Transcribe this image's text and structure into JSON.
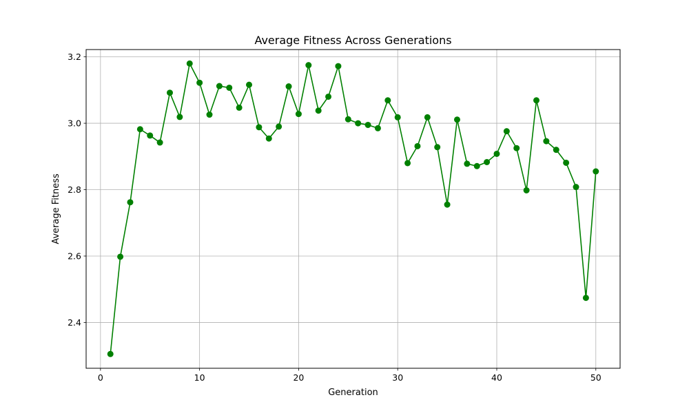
{
  "chart_data": {
    "type": "line",
    "title": "Average Fitness Across Generations",
    "xlabel": "Generation",
    "ylabel": "Average Fitness",
    "xlim": [
      -1.45,
      52.45
    ],
    "ylim": [
      2.262,
      3.222
    ],
    "xticks": [
      0,
      10,
      20,
      30,
      40,
      50
    ],
    "yticks": [
      2.4,
      2.6,
      2.8,
      3.0,
      3.2
    ],
    "xtick_labels": [
      "0",
      "10",
      "20",
      "30",
      "40",
      "50"
    ],
    "ytick_labels": [
      "2.4",
      "2.6",
      "2.8",
      "3.0",
      "3.2"
    ],
    "grid": true,
    "line_color": "#008000",
    "marker": "circle",
    "x": [
      1,
      2,
      3,
      4,
      5,
      6,
      7,
      8,
      9,
      10,
      11,
      12,
      13,
      14,
      15,
      16,
      17,
      18,
      19,
      20,
      21,
      22,
      23,
      24,
      25,
      26,
      27,
      28,
      29,
      30,
      31,
      32,
      33,
      34,
      35,
      36,
      37,
      38,
      39,
      40,
      41,
      42,
      43,
      44,
      45,
      46,
      47,
      48,
      49,
      50
    ],
    "y": [
      2.305,
      2.598,
      2.762,
      2.982,
      2.963,
      2.942,
      3.092,
      3.019,
      3.18,
      3.122,
      3.026,
      3.112,
      3.107,
      3.047,
      3.116,
      2.988,
      2.954,
      2.99,
      3.111,
      3.028,
      3.175,
      3.038,
      3.08,
      3.172,
      3.012,
      3.0,
      2.995,
      2.985,
      3.069,
      3.018,
      2.88,
      2.931,
      3.018,
      2.928,
      2.755,
      3.011,
      2.878,
      2.871,
      2.883,
      2.908,
      2.976,
      2.925,
      2.798,
      3.069,
      2.946,
      2.92,
      2.881,
      2.808,
      2.474,
      2.855
    ]
  }
}
